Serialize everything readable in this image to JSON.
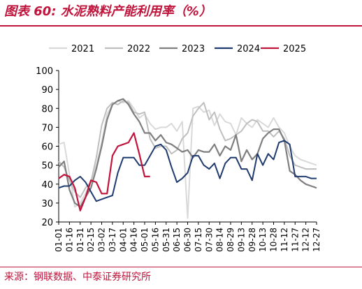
{
  "header": {
    "title": "图表 60:  水泥熟料产能利用率（%）"
  },
  "footer": {
    "source": "来源：钢联数据、中泰证券研究所"
  },
  "chart_data": {
    "type": "line",
    "title": "水泥熟料产能利用率（%）",
    "xlabel": "",
    "ylabel": "",
    "ylim": [
      20,
      100
    ],
    "yticks": [
      "20",
      "30",
      "40",
      "50",
      "60",
      "70",
      "80",
      "90",
      "100"
    ],
    "categories": [
      "01-01",
      "01-16",
      "01-31",
      "02-15",
      "03-02",
      "03-17",
      "04-01",
      "04-16",
      "05-01",
      "05-16",
      "05-31",
      "06-15",
      "06-30",
      "07-15",
      "07-30",
      "08-14",
      "08-29",
      "09-13",
      "09-28",
      "10-13",
      "10-28",
      "11-12",
      "11-27",
      "12-12",
      "12-27"
    ],
    "legend_position": "top",
    "grid": false,
    "colors": {
      "2021": "#d9d9d9",
      "2022": "#bfbfbf",
      "2023": "#7f7f7f",
      "2024": "#1f3a6e",
      "2025": "#c0143c"
    },
    "series": [
      {
        "name": "2021",
        "values": [
          null,
          null,
          null,
          null,
          null,
          null,
          null,
          null,
          null,
          null,
          null,
          null,
          null,
          null,
          null,
          null,
          null,
          null,
          null,
          null,
          null,
          null,
          null,
          null,
          null
        ],
        "points": [
          [
            1,
            61
          ],
          [
            2,
            62
          ],
          [
            3,
            45
          ],
          [
            4,
            28
          ],
          [
            5,
            30
          ],
          [
            6,
            35
          ],
          [
            7,
            41
          ],
          [
            8,
            50
          ],
          [
            9,
            62
          ],
          [
            10,
            77
          ],
          [
            11,
            82
          ],
          [
            12,
            84
          ],
          [
            13,
            83
          ],
          [
            14,
            84
          ],
          [
            15,
            80
          ],
          [
            16,
            75
          ],
          [
            17,
            77
          ],
          [
            18,
            72
          ],
          [
            19,
            69
          ],
          [
            20,
            70
          ],
          [
            21,
            70
          ],
          [
            22,
            72
          ],
          [
            23,
            68
          ],
          [
            24,
            73
          ],
          [
            25,
            22
          ],
          [
            26,
            80
          ],
          [
            27,
            81
          ],
          [
            28,
            78
          ],
          [
            29,
            79
          ],
          [
            30,
            71
          ],
          [
            31,
            77
          ],
          [
            32,
            73
          ],
          [
            33,
            72
          ],
          [
            34,
            66
          ],
          [
            35,
            75
          ],
          [
            36,
            72
          ],
          [
            37,
            70
          ],
          [
            38,
            74
          ],
          [
            39,
            72
          ],
          [
            40,
            70
          ],
          [
            41,
            75
          ],
          [
            42,
            70
          ],
          [
            43,
            67
          ],
          [
            44,
            60
          ],
          [
            45,
            55
          ],
          [
            46,
            53
          ],
          [
            47,
            52
          ],
          [
            48,
            51
          ],
          [
            49,
            50
          ]
        ]
      },
      {
        "name": "2022",
        "points": [
          [
            1,
            52
          ],
          [
            2,
            49
          ],
          [
            3,
            42
          ],
          [
            4,
            36
          ],
          [
            5,
            33
          ],
          [
            6,
            38
          ],
          [
            7,
            41
          ],
          [
            8,
            54
          ],
          [
            9,
            71
          ],
          [
            10,
            80
          ],
          [
            11,
            83
          ],
          [
            12,
            82
          ],
          [
            13,
            84
          ],
          [
            14,
            83
          ],
          [
            15,
            78
          ],
          [
            16,
            77
          ],
          [
            17,
            78
          ],
          [
            18,
            64
          ],
          [
            19,
            59
          ],
          [
            20,
            60
          ],
          [
            21,
            60
          ],
          [
            22,
            56
          ],
          [
            23,
            58
          ],
          [
            24,
            64
          ],
          [
            25,
            67
          ],
          [
            26,
            76
          ],
          [
            27,
            80
          ],
          [
            28,
            83
          ],
          [
            29,
            74
          ],
          [
            30,
            78
          ],
          [
            31,
            69
          ],
          [
            32,
            63
          ],
          [
            33,
            64
          ],
          [
            34,
            66
          ],
          [
            35,
            68
          ],
          [
            36,
            72
          ],
          [
            37,
            74
          ],
          [
            38,
            73
          ],
          [
            39,
            68
          ],
          [
            40,
            68
          ],
          [
            41,
            65
          ],
          [
            42,
            68
          ],
          [
            43,
            64
          ],
          [
            44,
            55
          ],
          [
            45,
            50
          ],
          [
            46,
            49
          ],
          [
            47,
            48
          ],
          [
            48,
            48
          ],
          [
            49,
            48
          ]
        ]
      },
      {
        "name": "2023",
        "points": [
          [
            1,
            49
          ],
          [
            2,
            52
          ],
          [
            3,
            37
          ],
          [
            4,
            30
          ],
          [
            5,
            28
          ],
          [
            6,
            33
          ],
          [
            7,
            38
          ],
          [
            8,
            48
          ],
          [
            9,
            60
          ],
          [
            10,
            74
          ],
          [
            11,
            82
          ],
          [
            12,
            84
          ],
          [
            13,
            85
          ],
          [
            14,
            82
          ],
          [
            15,
            77
          ],
          [
            16,
            73
          ],
          [
            17,
            67
          ],
          [
            18,
            67
          ],
          [
            19,
            63
          ],
          [
            20,
            66
          ],
          [
            21,
            62
          ],
          [
            22,
            61
          ],
          [
            23,
            59
          ],
          [
            24,
            57
          ],
          [
            25,
            58
          ],
          [
            26,
            54
          ],
          [
            27,
            58
          ],
          [
            28,
            57
          ],
          [
            29,
            57
          ],
          [
            30,
            61
          ],
          [
            31,
            55
          ],
          [
            32,
            60
          ],
          [
            33,
            58
          ],
          [
            34,
            66
          ],
          [
            35,
            52
          ],
          [
            36,
            58
          ],
          [
            37,
            53
          ],
          [
            38,
            56
          ],
          [
            39,
            64
          ],
          [
            40,
            67
          ],
          [
            41,
            69
          ],
          [
            42,
            69
          ],
          [
            43,
            63
          ],
          [
            44,
            47
          ],
          [
            45,
            45
          ],
          [
            46,
            42
          ],
          [
            47,
            40
          ],
          [
            48,
            39
          ],
          [
            49,
            38
          ]
        ]
      },
      {
        "name": "2024",
        "points": [
          [
            1,
            38
          ],
          [
            2,
            39
          ],
          [
            3,
            39
          ],
          [
            4,
            42
          ],
          [
            5,
            44
          ],
          [
            6,
            41
          ],
          [
            7,
            36
          ],
          [
            8,
            31
          ],
          [
            9,
            32
          ],
          [
            10,
            33
          ],
          [
            11,
            34
          ],
          [
            12,
            46
          ],
          [
            13,
            54
          ],
          [
            14,
            54
          ],
          [
            15,
            54
          ],
          [
            16,
            50
          ],
          [
            17,
            50
          ],
          [
            18,
            55
          ],
          [
            19,
            60
          ],
          [
            20,
            61
          ],
          [
            21,
            58
          ],
          [
            22,
            49
          ],
          [
            23,
            41
          ],
          [
            24,
            43
          ],
          [
            25,
            46
          ],
          [
            26,
            55
          ],
          [
            27,
            55
          ],
          [
            28,
            50
          ],
          [
            29,
            48
          ],
          [
            30,
            51
          ],
          [
            31,
            43
          ],
          [
            32,
            51
          ],
          [
            33,
            54
          ],
          [
            34,
            54
          ],
          [
            35,
            48
          ],
          [
            36,
            48
          ],
          [
            37,
            42
          ],
          [
            38,
            56
          ],
          [
            39,
            50
          ],
          [
            40,
            56
          ],
          [
            41,
            53
          ],
          [
            42,
            62
          ],
          [
            43,
            63
          ],
          [
            44,
            61
          ],
          [
            45,
            44
          ],
          [
            46,
            44
          ],
          [
            47,
            44
          ],
          [
            48,
            43
          ],
          [
            49,
            43
          ]
        ]
      },
      {
        "name": "2025",
        "points": [
          [
            1,
            43
          ],
          [
            2,
            45
          ],
          [
            3,
            44
          ],
          [
            4,
            38
          ],
          [
            5,
            26
          ],
          [
            6,
            33
          ],
          [
            7,
            42
          ],
          [
            8,
            41
          ],
          [
            9,
            35
          ],
          [
            10,
            35
          ],
          [
            11,
            55
          ],
          [
            12,
            60
          ],
          [
            13,
            61
          ],
          [
            14,
            62
          ],
          [
            15,
            67
          ],
          [
            16,
            56
          ],
          [
            17,
            44
          ],
          [
            18,
            44
          ]
        ]
      }
    ]
  }
}
